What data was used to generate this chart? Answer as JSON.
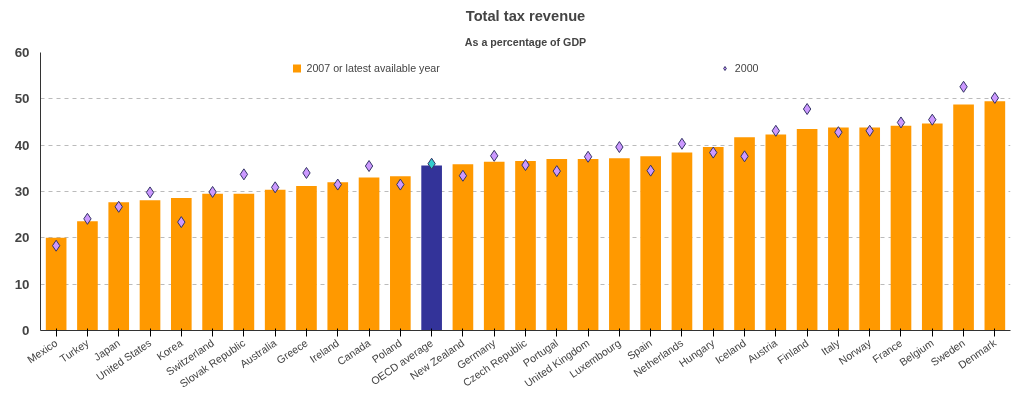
{
  "chart_data": {
    "type": "bar",
    "title": "Total tax revenue",
    "subtitle": "As a percentage of GDP",
    "categories": [
      "Mexico",
      "Turkey",
      "Japan",
      "United States",
      "Korea",
      "Switzerland",
      "Slovak Republic",
      "Australia",
      "Greece",
      "Ireland",
      "Canada",
      "Poland",
      "OECD average",
      "New Zealand",
      "Germany",
      "Czech Republic",
      "Portugal",
      "United Kingdom",
      "Luxembourg",
      "Spain",
      "Netherlands",
      "Hungary",
      "Iceland",
      "Austria",
      "Finland",
      "Italy",
      "Norway",
      "France",
      "Belgium",
      "Sweden",
      "Denmark"
    ],
    "series": [
      {
        "name": "2007 or latest available year",
        "colors": [
          "#ff9900",
          "#ff9900",
          "#ff9900",
          "#ff9900",
          "#ff9900",
          "#ff9900",
          "#ff9900",
          "#ff9900",
          "#ff9900",
          "#ff9900",
          "#ff9900",
          "#ff9900",
          "#333399",
          "#ff9900",
          "#ff9900",
          "#ff9900",
          "#ff9900",
          "#ff9900",
          "#ff9900",
          "#ff9900",
          "#ff9900",
          "#ff9900",
          "#ff9900",
          "#ff9900",
          "#ff9900",
          "#ff9900",
          "#ff9900",
          "#ff9900",
          "#ff9900",
          "#ff9900",
          "#ff9900"
        ],
        "values": [
          20.0,
          23.6,
          27.7,
          28.1,
          28.6,
          29.5,
          29.5,
          30.4,
          31.2,
          32.0,
          33.0,
          33.3,
          35.6,
          35.9,
          36.4,
          36.6,
          37.0,
          37.0,
          37.2,
          37.6,
          38.4,
          39.6,
          41.7,
          42.3,
          43.5,
          43.8,
          43.8,
          44.2,
          44.7,
          48.8,
          49.5
        ]
      },
      {
        "name": "2000",
        "type": "scatter",
        "marker": "diamond",
        "colors": [
          "#cc99ff",
          "#cc99ff",
          "#cc99ff",
          "#cc99ff",
          "#cc99ff",
          "#cc99ff",
          "#cc99ff",
          "#cc99ff",
          "#cc99ff",
          "#cc99ff",
          "#cc99ff",
          "#cc99ff",
          "#33cccc",
          "#cc99ff",
          "#cc99ff",
          "#cc99ff",
          "#cc99ff",
          "#cc99ff",
          "#cc99ff",
          "#cc99ff",
          "#cc99ff",
          "#cc99ff",
          "#cc99ff",
          "#cc99ff",
          "#cc99ff",
          "#cc99ff",
          "#cc99ff",
          "#cc99ff",
          "#cc99ff",
          "#cc99ff",
          "#cc99ff"
        ],
        "values": [
          18.3,
          24.1,
          26.7,
          29.8,
          23.4,
          29.9,
          33.7,
          30.9,
          34.0,
          31.5,
          35.5,
          31.5,
          36.0,
          33.4,
          37.7,
          35.7,
          34.4,
          37.5,
          39.6,
          34.5,
          40.3,
          38.4,
          37.6,
          43.1,
          47.8,
          42.8,
          43.1,
          44.9,
          45.5,
          52.6,
          50.2
        ]
      }
    ],
    "ylim": [
      0,
      60
    ],
    "yticks": [
      0,
      10,
      20,
      30,
      40,
      50,
      60
    ],
    "grid": "y",
    "legend": "top"
  }
}
